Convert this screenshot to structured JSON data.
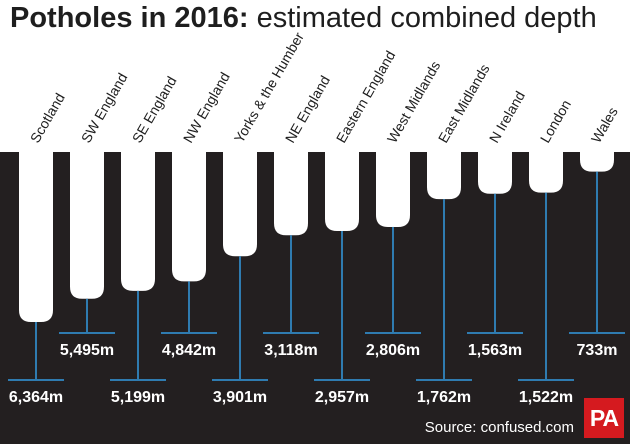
{
  "header": {
    "title_bold": "Potholes in 2016:",
    "title_rest": " estimated combined depth"
  },
  "chart_data": {
    "type": "bar",
    "title": "Potholes in 2016: estimated combined depth",
    "categories": [
      "Scotland",
      "SW England",
      "SE England",
      "NW England",
      "Yorks & the Humber",
      "NE England",
      "Eastern England",
      "West Midlands",
      "East Midlands",
      "N Ireland",
      "London",
      "Wales"
    ],
    "values": [
      6364,
      5495,
      5199,
      4842,
      3901,
      3118,
      2957,
      2806,
      1762,
      1563,
      1522,
      733
    ],
    "value_labels": [
      "6,364m",
      "5,495m",
      "5,199m",
      "4,842m",
      "3,901m",
      "3,118m",
      "2,957m",
      "2,806m",
      "1,762m",
      "1,563m",
      "1,522m",
      "733m"
    ],
    "unit": "m",
    "orientation": "downward",
    "colors": {
      "background": "#231f20",
      "bar": "#ffffff",
      "leader": "#2f7bb0"
    }
  },
  "footer": {
    "source": "Source: confused.com",
    "logo": "PA"
  }
}
